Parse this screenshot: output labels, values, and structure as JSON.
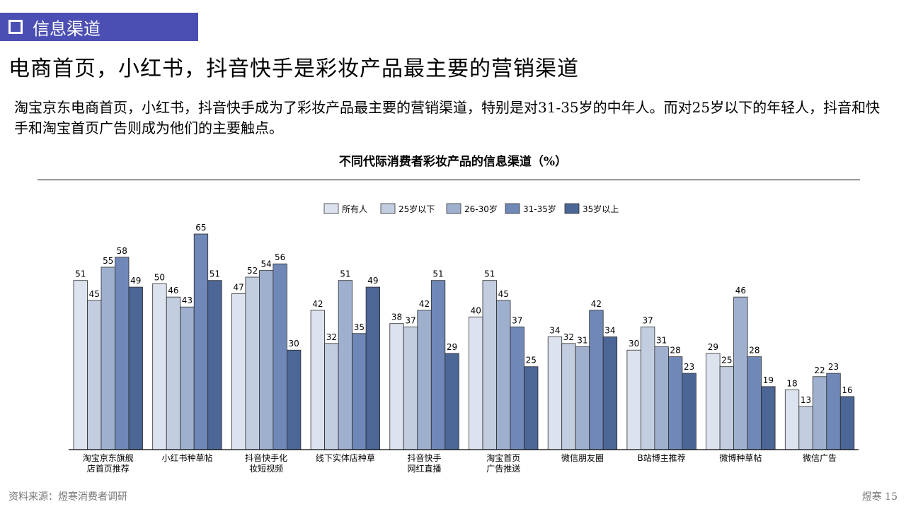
{
  "section_tag": "信息渠道",
  "headline": "电商首页，小红书，抖音快手是彩妆产品最主要的营销渠道",
  "summary": "淘宝京东电商首页，小红书，抖音快手成为了彩妆产品最主要的营销渠道，特别是对31-35岁的中年人。而对25岁以下的年轻人，抖音和快手和淘宝首页广告则成为他们的主要触点。",
  "footer": {
    "source": "资料来源：煜寒消费者调研",
    "page": "煜寒 15"
  },
  "colors": [
    "#dde3ee",
    "#c3cde0",
    "#9fb0cf",
    "#7088b8",
    "#4c6696"
  ],
  "chart_data": {
    "type": "bar",
    "title": "不同代际消费者彩妆产品的信息渠道（%）",
    "legend_position": "top-center",
    "grid": false,
    "ylim": [
      0,
      70
    ],
    "categories": [
      [
        "淘宝京东旗舰",
        "店首页推荐"
      ],
      [
        "小红书种草帖"
      ],
      [
        "抖音快手化",
        "妆短视频"
      ],
      [
        "线下实体店种草"
      ],
      [
        "抖音快手",
        "网红直播"
      ],
      [
        "淘宝首页",
        "广告推送"
      ],
      [
        "微信朋友圈"
      ],
      [
        "B站博主推荐"
      ],
      [
        "微博种草帖"
      ],
      [
        "微信广告"
      ]
    ],
    "series": [
      {
        "name": "所有人",
        "values": [
          51,
          50,
          47,
          42,
          38,
          40,
          34,
          30,
          29,
          18
        ]
      },
      {
        "name": "25岁以下",
        "values": [
          45,
          46,
          52,
          32,
          37,
          51,
          32,
          37,
          25,
          13
        ]
      },
      {
        "name": "26-30岁",
        "values": [
          55,
          43,
          54,
          51,
          42,
          45,
          31,
          31,
          46,
          22
        ]
      },
      {
        "name": "31-35岁",
        "values": [
          58,
          65,
          56,
          35,
          51,
          37,
          42,
          28,
          28,
          23
        ]
      },
      {
        "name": "35岁以上",
        "values": [
          49,
          51,
          30,
          49,
          29,
          25,
          34,
          23,
          19,
          16
        ]
      }
    ]
  }
}
